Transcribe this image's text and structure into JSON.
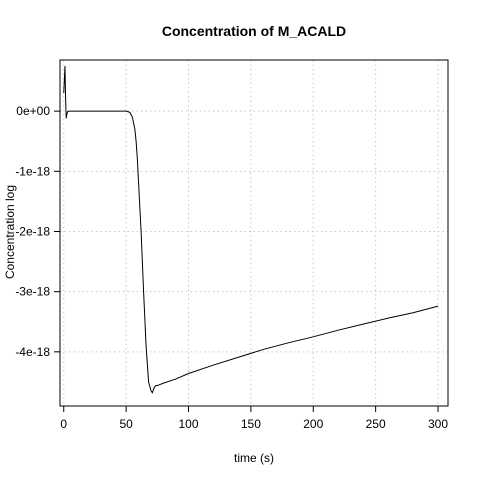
{
  "chart_data": {
    "type": "line",
    "title": "Concentration of M_ACALD",
    "xlabel": "time (s)",
    "ylabel": "Concentration log",
    "xlim": [
      -3,
      308
    ],
    "ylim": [
      -4.9e-18,
      8.5e-19
    ],
    "grid": true,
    "x_ticks": [
      0,
      50,
      100,
      150,
      200,
      250,
      300
    ],
    "x_tick_labels": [
      "0",
      "50",
      "100",
      "150",
      "200",
      "250",
      "300"
    ],
    "y_ticks": [
      0,
      -1e-18,
      -2e-18,
      -3e-18,
      -4e-18
    ],
    "y_tick_labels": [
      "0e+00",
      "-1e-18",
      "-2e-18",
      "-3e-18",
      "-4e-18"
    ],
    "series": [
      {
        "x": [
          0,
          1,
          1.5,
          2,
          2.5,
          3,
          4,
          5,
          10,
          20,
          30,
          40,
          50,
          53,
          55,
          57,
          58,
          59,
          60,
          62,
          64,
          66,
          68,
          70,
          71,
          72,
          73,
          74,
          75,
          80,
          90,
          100,
          120,
          140,
          160,
          180,
          200,
          220,
          240,
          260,
          280,
          300
        ],
        "y": [
          3e-19,
          7.5e-19,
          2e-19,
          -1.2e-19,
          -5e-20,
          -1e-20,
          0,
          0,
          0,
          0,
          0,
          0,
          0,
          -2e-20,
          -1e-19,
          -3e-19,
          -5e-19,
          -8e-19,
          -1.2e-18,
          -2e-18,
          -3e-18,
          -3.9e-18,
          -4.5e-18,
          -4.65e-18,
          -4.68e-18,
          -4.62e-18,
          -4.58e-18,
          -4.56e-18,
          -4.56e-18,
          -4.52e-18,
          -4.45e-18,
          -4.36e-18,
          -4.22e-18,
          -4.09e-18,
          -3.96e-18,
          -3.85e-18,
          -3.75e-18,
          -3.64e-18,
          -3.54e-18,
          -3.44e-18,
          -3.35e-18,
          -3.24e-18
        ]
      }
    ]
  }
}
